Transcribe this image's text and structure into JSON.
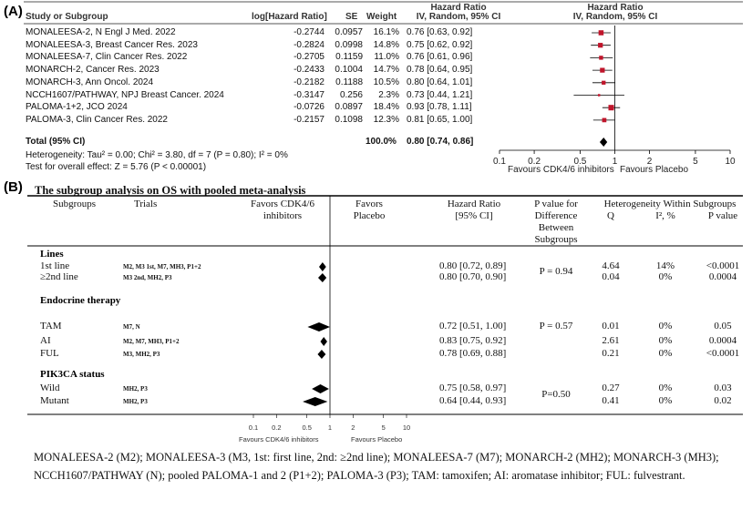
{
  "panelA": {
    "label": "(A)",
    "headers": {
      "study": "Study or Subgroup",
      "loghr": "log[Hazard Ratio]",
      "se": "SE",
      "weight": "Weight",
      "hr_top": "Hazard Ratio",
      "hr_sub": "IV, Random, 95% CI",
      "plot_top": "Hazard Ratio",
      "plot_sub": "IV, Random, 95% CI"
    },
    "rows": [
      {
        "study": "MONALEESA-2, N Engl J Med. 2022",
        "loghr": "-0.2744",
        "se": "0.0957",
        "weight": "16.1%",
        "ci": "0.76 [0.63, 0.92]",
        "hr": 0.76,
        "lo": 0.63,
        "hi": 0.92,
        "w": 16.1
      },
      {
        "study": "MONALEESA-3, Breast Cancer Res. 2023",
        "loghr": "-0.2824",
        "se": "0.0998",
        "weight": "14.8%",
        "ci": "0.75 [0.62, 0.92]",
        "hr": 0.75,
        "lo": 0.62,
        "hi": 0.92,
        "w": 14.8
      },
      {
        "study": "MONALEESA-7, Clin Cancer Res. 2022",
        "loghr": "-0.2705",
        "se": "0.1159",
        "weight": "11.0%",
        "ci": "0.76 [0.61, 0.96]",
        "hr": 0.76,
        "lo": 0.61,
        "hi": 0.96,
        "w": 11.0
      },
      {
        "study": "MONARCH-2, Cancer Res. 2023",
        "loghr": "-0.2433",
        "se": "0.1004",
        "weight": "14.7%",
        "ci": "0.78 [0.64, 0.95]",
        "hr": 0.78,
        "lo": 0.64,
        "hi": 0.95,
        "w": 14.7
      },
      {
        "study": "MONARCH-3, Ann Oncol. 2024",
        "loghr": "-0.2182",
        "se": "0.1188",
        "weight": "10.5%",
        "ci": "0.80 [0.64, 1.01]",
        "hr": 0.8,
        "lo": 0.64,
        "hi": 1.01,
        "w": 10.5
      },
      {
        "study": "NCCH1607/PATHWAY, NPJ Breast Cancer. 2024",
        "loghr": "-0.3147",
        "se": "0.256",
        "weight": "2.3%",
        "ci": "0.73 [0.44, 1.21]",
        "hr": 0.73,
        "lo": 0.44,
        "hi": 1.21,
        "w": 2.3
      },
      {
        "study": "PALOMA-1+2, JCO 2024",
        "loghr": "-0.0726",
        "se": "0.0897",
        "weight": "18.4%",
        "ci": "0.93 [0.78, 1.11]",
        "hr": 0.93,
        "lo": 0.78,
        "hi": 1.11,
        "w": 18.4
      },
      {
        "study": "PALOMA-3, Clin Cancer Res. 2022",
        "loghr": "-0.2157",
        "se": "0.1098",
        "weight": "12.3%",
        "ci": "0.81 [0.65, 1.00]",
        "hr": 0.81,
        "lo": 0.65,
        "hi": 1.0,
        "w": 12.3
      }
    ],
    "total": {
      "label": "Total (95% CI)",
      "weight": "100.0%",
      "ci": "0.80 [0.74, 0.86]",
      "hr": 0.8,
      "lo": 0.74,
      "hi": 0.86
    },
    "heterogeneity": "Heterogeneity: Tau² = 0.00; Chi² = 3.80, df = 7 (P = 0.80); I² = 0%",
    "overall_effect": "Test for overall effect: Z = 5.76 (P < 0.00001)",
    "ticks": [
      "0.1",
      "0.2",
      "0.5",
      "1",
      "2",
      "5",
      "10"
    ],
    "favours_left": "Favours CDK4/6 inhibitors",
    "favours_right": "Favours Placebo",
    "marker_color": "#c0152b"
  },
  "panelB": {
    "label": "(B)",
    "title": "The subgroup analysis on OS with pooled meta-analysis",
    "headers": {
      "subgroups": "Subgroups",
      "trials": "Trials",
      "favors_cdk_1": "Favors CDK4/6",
      "favors_cdk_2": "inhibitors",
      "favors_placebo_1": "Favors",
      "favors_placebo_2": "Placebo",
      "hr_1": "Hazard Ratio",
      "hr_2": "[95% CI]",
      "pval_1": "P value for",
      "pval_2": "Difference",
      "pval_3": "Between",
      "pval_4": "Subgroups",
      "het_title": "Heterogeneity Within Subgroups",
      "het_q": "Q",
      "het_i2": "I², %",
      "het_p": "P value"
    },
    "groups": [
      {
        "title": "Lines",
        "pdiff": "P = 0.94",
        "rows": [
          {
            "label": "1st line",
            "trials": "M2, M3 1st, M7, MH3, P1+2",
            "ci": "0.80 [0.72, 0.89]",
            "hr": 0.8,
            "lo": 0.72,
            "hi": 0.89,
            "q": "4.64",
            "i2": "14%",
            "p": "<0.0001"
          },
          {
            "label": "≥2nd line",
            "trials": "M3 2nd, MH2, P3",
            "ci": "0.80 [0.70, 0.90]",
            "hr": 0.8,
            "lo": 0.7,
            "hi": 0.9,
            "q": "0.04",
            "i2": "0%",
            "p": "0.0004"
          }
        ]
      },
      {
        "title": "Endocrine therapy",
        "pdiff": "P = 0.57",
        "rows": [
          {
            "label": "TAM",
            "trials": "M7, N",
            "ci": "0.72 [0.51, 1.00]",
            "hr": 0.72,
            "lo": 0.51,
            "hi": 1.0,
            "q": "0.01",
            "i2": "0%",
            "p": "0.05"
          },
          {
            "label": "AI",
            "trials": "M2, M7, MH3, P1+2",
            "ci": "0.83 [0.75, 0.92]",
            "hr": 0.83,
            "lo": 0.75,
            "hi": 0.92,
            "q": "2.61",
            "i2": "0%",
            "p": "0.0004"
          },
          {
            "label": "FUL",
            "trials": "M3, MH2, P3",
            "ci": "0.78 [0.69, 0.88]",
            "hr": 0.78,
            "lo": 0.69,
            "hi": 0.88,
            "q": "0.21",
            "i2": "0%",
            "p": "<0.0001"
          }
        ]
      },
      {
        "title": "PIK3CA status",
        "pdiff": "P=0.50",
        "rows": [
          {
            "label": "Wild",
            "trials": "MH2, P3",
            "ci": "0.75 [0.58, 0.97]",
            "hr": 0.75,
            "lo": 0.58,
            "hi": 0.97,
            "q": "0.27",
            "i2": "0%",
            "p": "0.03"
          },
          {
            "label": "Mutant",
            "trials": "MH2, P3",
            "ci": "0.64 [0.44, 0.93]",
            "hr": 0.64,
            "lo": 0.44,
            "hi": 0.93,
            "q": "0.41",
            "i2": "0%",
            "p": "0.02"
          }
        ]
      }
    ],
    "ticks": [
      "0.1",
      "0.2",
      "0.5",
      "1",
      "2",
      "5",
      "10"
    ],
    "favours_left": "Favours CDK4/6 inhibitors",
    "favours_right": "Favours Placebo"
  },
  "footer": "MONALEESA-2 (M2); MONALEESA-3 (M3, 1st: first line, 2nd: ≥2nd line); MONALEESA-7 (M7); MONARCH-2 (MH2); MONARCH-3 (MH3); NCCH1607/PATHWAY (N); pooled PALOMA-1 and 2 (P1+2); PALOMA-3 (P3); TAM: tamoxifen; AI: aromatase inhibitor; FUL: fulvestrant.",
  "chart_data": [
    {
      "type": "forest",
      "title": "Hazard Ratio IV, Random, 95% CI",
      "xscale": "log",
      "xlim": [
        0.1,
        10
      ],
      "xticks": [
        0.1,
        0.2,
        0.5,
        1,
        2,
        5,
        10
      ],
      "categories": [
        "MONALEESA-2",
        "MONALEESA-3",
        "MONALEESA-7",
        "MONARCH-2",
        "MONARCH-3",
        "NCCH1607/PATHWAY",
        "PALOMA-1+2",
        "PALOMA-3",
        "Total"
      ],
      "values": [
        0.76,
        0.75,
        0.76,
        0.78,
        0.8,
        0.73,
        0.93,
        0.81,
        0.8
      ],
      "lower": [
        0.63,
        0.62,
        0.61,
        0.64,
        0.64,
        0.44,
        0.78,
        0.65,
        0.74
      ],
      "upper": [
        0.92,
        0.92,
        0.96,
        0.95,
        1.01,
        1.21,
        1.11,
        1.0,
        0.86
      ]
    },
    {
      "type": "forest",
      "title": "The subgroup analysis on OS with pooled meta-analysis",
      "xscale": "log",
      "xlim": [
        0.1,
        10
      ],
      "categories": [
        "1st line",
        "≥2nd line",
        "TAM",
        "AI",
        "FUL",
        "Wild",
        "Mutant"
      ],
      "values": [
        0.8,
        0.8,
        0.72,
        0.83,
        0.78,
        0.75,
        0.64
      ],
      "lower": [
        0.72,
        0.7,
        0.51,
        0.75,
        0.69,
        0.58,
        0.44
      ],
      "upper": [
        0.89,
        0.9,
        1.0,
        0.92,
        0.88,
        0.97,
        0.93
      ]
    }
  ]
}
